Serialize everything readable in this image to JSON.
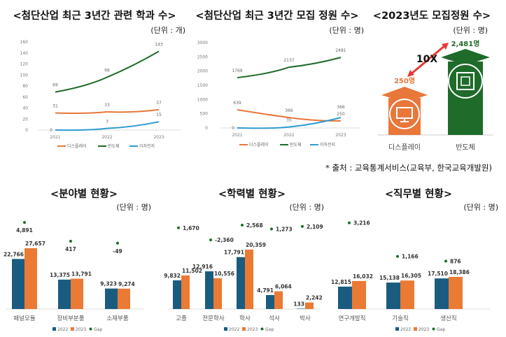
{
  "colors": {
    "display": "#e8773a",
    "semi": "#1f6b2a",
    "battery": "#2e9bd1",
    "y2022": "#1a5c80",
    "y2023": "#ea7a34",
    "gap": "#1f6b2a",
    "negative": "#e53935"
  },
  "source_note": "* 출처 : 교육통계서비스(교육부, 한국교육개발원)",
  "infographic": {
    "title": "<2023년도 모집정원 수>",
    "unit": "(단위 : 명)",
    "ratio_label": "10X",
    "items": [
      {
        "name": "디스플레이",
        "value_label": "250명",
        "value": 250,
        "icon": "monitor-icon"
      },
      {
        "name": "반도체",
        "value_label": "2,481명",
        "value": 2481,
        "icon": "chip-icon"
      }
    ]
  },
  "chart_data": [
    {
      "type": "line",
      "title": "<첨단산업 최근 3년간 관련 학과 수>",
      "unit": "(단위 : 개)",
      "x": [
        "2021",
        "2022",
        "2023"
      ],
      "ylim": [
        0,
        160
      ],
      "yticks": [
        0,
        20,
        40,
        60,
        80,
        100,
        120,
        140,
        160
      ],
      "legend": "bottom",
      "series": [
        {
          "name": "디스플레이",
          "key": "display",
          "values": [
            31,
            33,
            37
          ]
        },
        {
          "name": "반도체",
          "key": "semi",
          "values": [
            69,
            96,
            143
          ]
        },
        {
          "name": "이차전지",
          "key": "battery",
          "values": [
            0,
            3,
            15
          ]
        }
      ]
    },
    {
      "type": "line",
      "title": "<첨단산업 최근 3년간 모집 정원 수>",
      "unit": "(단위 : 명)",
      "x": [
        "2021",
        "2022",
        "2023"
      ],
      "ylim": [
        0,
        3000
      ],
      "yticks": [
        0,
        500,
        1000,
        1500,
        2000,
        2500,
        3000
      ],
      "legend": "bottom",
      "series": [
        {
          "name": "디스플레이",
          "key": "display",
          "values": [
            639,
            366,
            250
          ]
        },
        {
          "name": "반도체",
          "key": "semi",
          "values": [
            1769,
            2137,
            2481
          ]
        },
        {
          "name": "이차전지",
          "key": "battery",
          "values": [
            0,
            35,
            366
          ]
        }
      ]
    },
    {
      "type": "bar",
      "title": "<분야별 현황>",
      "unit": "(단위 : 명)",
      "categories": [
        "패널모듈",
        "장비부분품",
        "소재부품"
      ],
      "legend": "bottom",
      "series": [
        {
          "name": "2022",
          "values": [
            22766,
            13375,
            9323
          ]
        },
        {
          "name": "2023",
          "values": [
            27657,
            13791,
            9274
          ]
        },
        {
          "name": "Gap",
          "values": [
            4891,
            417,
            -49
          ]
        }
      ]
    },
    {
      "type": "bar",
      "title": "<학력별 현황>",
      "unit": "(단위 : 명)",
      "categories": [
        "고졸",
        "전문학사",
        "학사",
        "석사",
        "박사"
      ],
      "legend": "bottom",
      "series": [
        {
          "name": "2022",
          "values": [
            9832,
            12916,
            17791,
            4791,
            133
          ]
        },
        {
          "name": "2023",
          "values": [
            11502,
            10556,
            20359,
            6064,
            2242
          ]
        },
        {
          "name": "Gap",
          "values": [
            1670,
            -2360,
            2568,
            1273,
            2109
          ]
        }
      ]
    },
    {
      "type": "bar",
      "title": "<직무별 현황>",
      "unit": "(단위 : 명)",
      "categories": [
        "연구개발직",
        "기술직",
        "생산직"
      ],
      "legend": "bottom",
      "series": [
        {
          "name": "2022",
          "values": [
            12815,
            15138,
            17510
          ]
        },
        {
          "name": "2023",
          "values": [
            16032,
            16305,
            18386
          ]
        },
        {
          "name": "Gap",
          "values": [
            3216,
            1166,
            876
          ]
        }
      ]
    }
  ]
}
